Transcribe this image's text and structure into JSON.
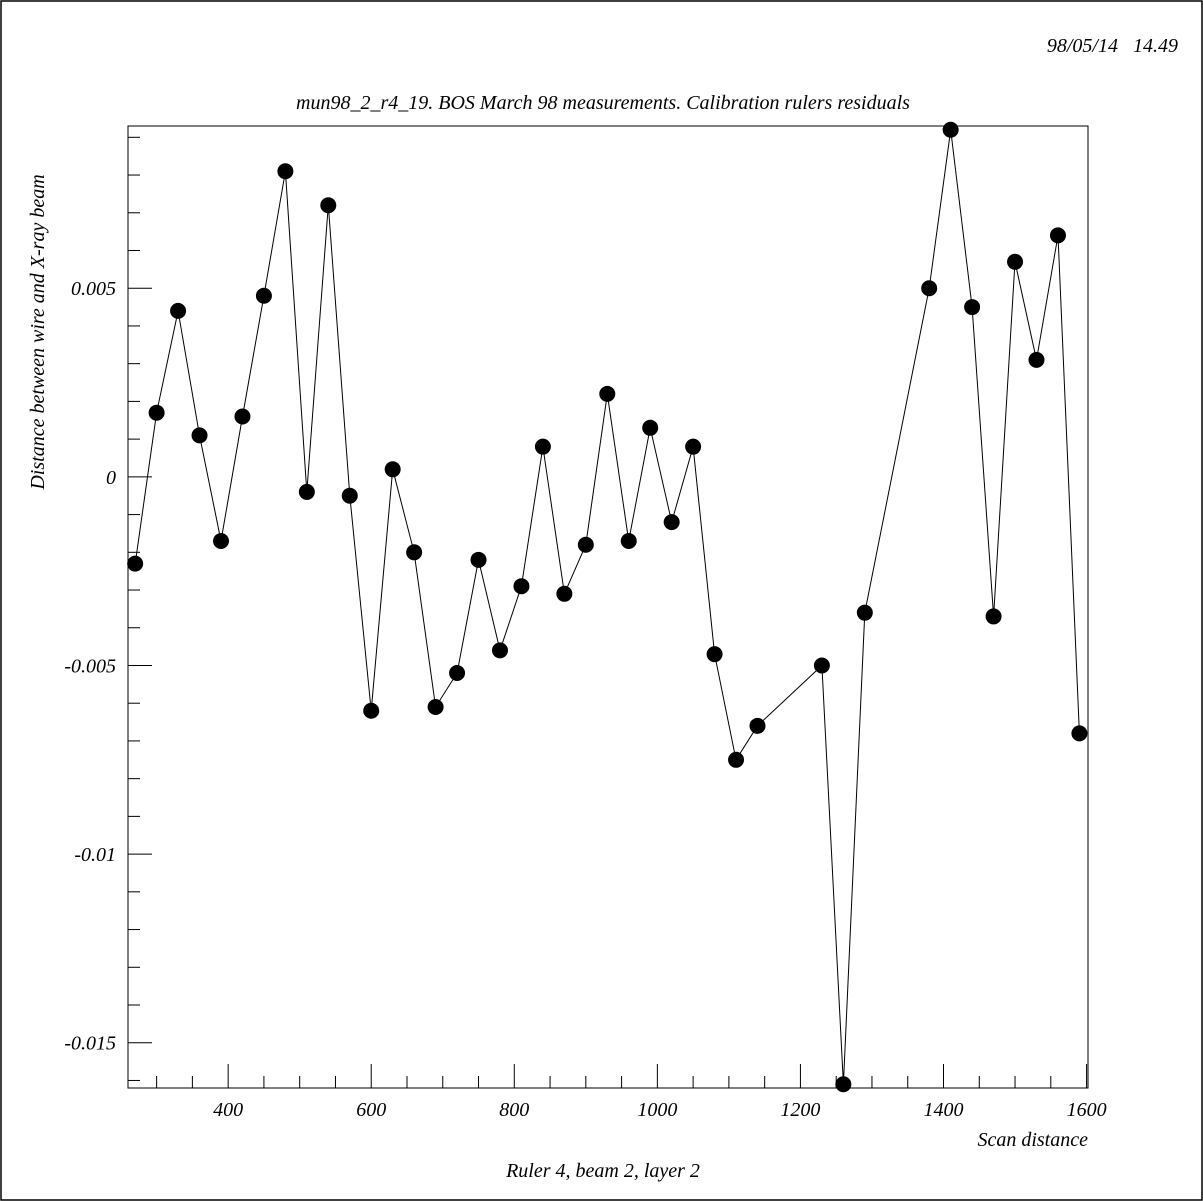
{
  "header": {
    "timestamp": "98/05/14   14.49"
  },
  "chart_data": {
    "type": "scatter",
    "title": "mun98_2_r4_19. BOS March 98 measurements. Calibration rulers residuals",
    "xlabel": "Scan distance",
    "ylabel": "Distance between wire and X-ray beam",
    "footer": "Ruler 4, beam 2, layer 2",
    "xlim": [
      260,
      1602
    ],
    "ylim": [
      -0.0162,
      0.0093
    ],
    "x_ticks": [
      {
        "value": 400,
        "label": "400"
      },
      {
        "value": 600,
        "label": "600"
      },
      {
        "value": 800,
        "label": "800"
      },
      {
        "value": 1000,
        "label": "1000"
      },
      {
        "value": 1200,
        "label": "1200"
      },
      {
        "value": 1400,
        "label": "1400"
      },
      {
        "value": 1600,
        "label": "1600"
      }
    ],
    "y_ticks": [
      {
        "value": 0.005,
        "label": "0.005"
      },
      {
        "value": 0,
        "label": "0"
      },
      {
        "value": -0.005,
        "label": "-0.005"
      },
      {
        "value": -0.01,
        "label": "-0.01"
      },
      {
        "value": -0.015,
        "label": "-0.015"
      }
    ],
    "x_minor_step": 50,
    "y_minor_step": 0.001,
    "line_connected": true,
    "marker_color": "#000000",
    "line_color": "#000000",
    "series": [
      {
        "x": [
          270,
          300,
          330,
          360,
          390,
          420,
          450,
          480,
          510,
          540,
          570,
          600,
          630,
          660,
          690,
          720,
          750,
          780,
          810,
          840,
          870,
          900,
          930,
          960,
          990,
          1020,
          1050,
          1080,
          1110,
          1140,
          1230,
          1260,
          1290,
          1380,
          1410,
          1440,
          1470,
          1500,
          1530,
          1560,
          1590
        ],
        "y": [
          -0.0023,
          0.0017,
          0.0044,
          0.0011,
          -0.0017,
          0.0016,
          0.0048,
          0.0081,
          -0.0004,
          0.0072,
          -0.0005,
          -0.0062,
          0.0002,
          -0.002,
          -0.0061,
          -0.0052,
          -0.0022,
          -0.0046,
          -0.0029,
          0.0008,
          -0.0031,
          -0.0018,
          0.0022,
          -0.0017,
          0.0013,
          -0.0012,
          0.0008,
          -0.0047,
          -0.0075,
          -0.0066,
          -0.005,
          -0.0161,
          -0.0036,
          0.005,
          0.0092,
          0.0045,
          -0.0037,
          0.0057,
          0.0031,
          0.0064,
          -0.0068
        ]
      }
    ]
  }
}
